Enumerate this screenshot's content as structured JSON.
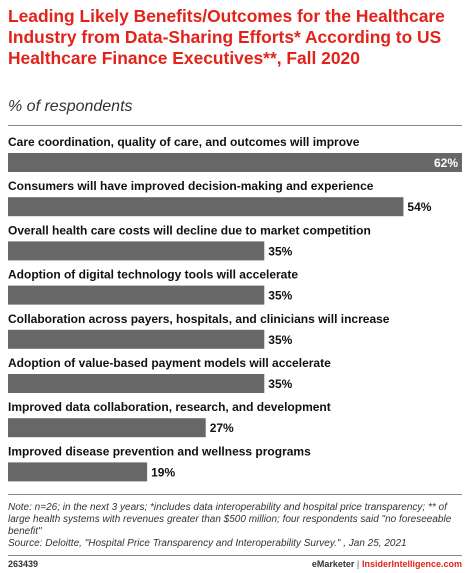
{
  "title": "Leading Likely Benefits/Outcomes for the Healthcare Industry from Data-Sharing Efforts* According to US Healthcare Finance Executives**, Fall 2020",
  "subtitle": "% of respondents",
  "colors": {
    "title": "#e2231a",
    "bar": "#676767",
    "value_inside": "#ffffff",
    "value_outside": "#111111"
  },
  "chart_data": {
    "type": "bar",
    "orientation": "horizontal",
    "categories": [
      "Care coordination, quality of care, and outcomes will improve",
      "Consumers will have improved decision-making and experience",
      "Overall health care costs will decline due to market competition",
      "Adoption of digital technology tools will accelerate",
      "Collaboration across payers, hospitals, and clinicians will increase",
      "Adoption of value-based payment models will accelerate",
      "Improved data collaboration, research, and development",
      "Improved disease prevention and wellness programs"
    ],
    "values": [
      62,
      54,
      35,
      35,
      35,
      35,
      27,
      19
    ],
    "value_labels": [
      "62%",
      "54%",
      "35%",
      "35%",
      "35%",
      "35%",
      "27%",
      "19%"
    ],
    "unit": "%",
    "xlim": [
      0,
      62
    ],
    "grid": false,
    "legend": "none"
  },
  "footer": {
    "note": "Note: n=26; in the next 3 years; *includes data interoperability and hospital price transparency; ** of large health systems with revenues greater than $500 million; four respondents said \"no foreseeable benefit\"",
    "source": "Source: Deloitte, \"Hospital Price Transparency and Interoperability Survey.\" , Jan 25, 2021",
    "chart_id": "263439",
    "brand_left": "eMarketer",
    "brand_sep": "|",
    "brand_right": "InsiderIntelligence.com"
  }
}
